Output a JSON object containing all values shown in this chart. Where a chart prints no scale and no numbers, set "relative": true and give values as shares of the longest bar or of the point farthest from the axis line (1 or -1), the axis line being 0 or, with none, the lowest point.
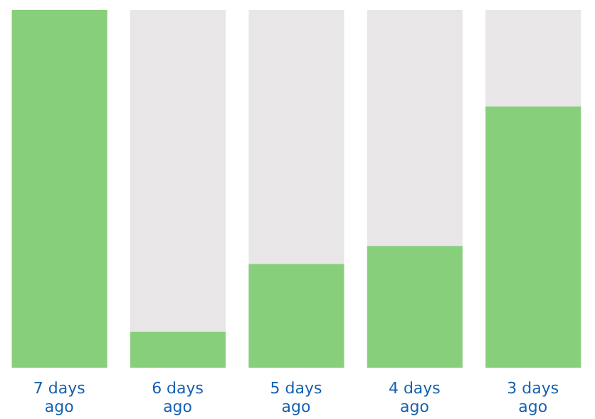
{
  "chart_data": {
    "type": "bar",
    "relative": true,
    "categories": [
      "7 days ago",
      "6 days ago",
      "5 days ago",
      "4 days ago",
      "3 days ago"
    ],
    "values": [
      1,
      0.1,
      0.29,
      0.34,
      0.73
    ],
    "color": "#88cf7c"
  }
}
